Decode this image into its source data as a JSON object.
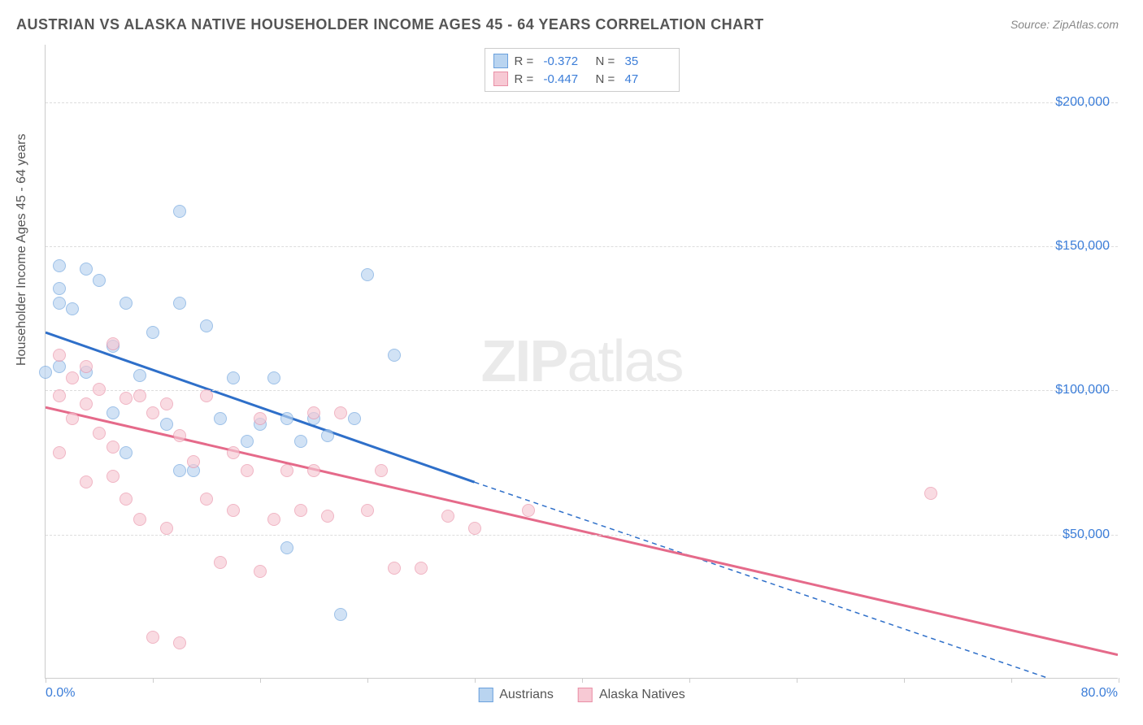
{
  "title": "AUSTRIAN VS ALASKA NATIVE HOUSEHOLDER INCOME AGES 45 - 64 YEARS CORRELATION CHART",
  "source": "Source: ZipAtlas.com",
  "ylabel": "Householder Income Ages 45 - 64 years",
  "watermark_a": "ZIP",
  "watermark_b": "atlas",
  "chart": {
    "type": "scatter",
    "xlim": [
      0,
      80
    ],
    "ylim": [
      0,
      220000
    ],
    "x_min_label": "0.0%",
    "x_max_label": "80.0%",
    "y_ticks": [
      50000,
      100000,
      150000,
      200000
    ],
    "y_tick_labels": [
      "$50,000",
      "$100,000",
      "$150,000",
      "$200,000"
    ],
    "x_ticks": [
      0,
      8,
      16,
      24,
      32,
      40,
      48,
      56,
      64,
      72,
      80
    ],
    "grid_color": "#dddddd",
    "axis_color": "#cccccc",
    "background": "#ffffff",
    "point_radius": 8,
    "series": [
      {
        "name": "Austrians",
        "fill": "#b9d4f0",
        "stroke": "#6aa0dd",
        "line_color": "#2e6fc9",
        "r_value": "-0.372",
        "n_value": "35",
        "trend_solid": {
          "x1": 0,
          "y1": 120000,
          "x2": 32,
          "y2": 68000
        },
        "trend_dash": {
          "x1": 32,
          "y1": 68000,
          "x2": 76,
          "y2": -2000
        },
        "points": [
          [
            1,
            143000
          ],
          [
            1,
            135000
          ],
          [
            1,
            130000
          ],
          [
            2,
            128000
          ],
          [
            3,
            142000
          ],
          [
            4,
            138000
          ],
          [
            5,
            115000
          ],
          [
            6,
            130000
          ],
          [
            7,
            105000
          ],
          [
            8,
            120000
          ],
          [
            9,
            88000
          ],
          [
            10,
            162000
          ],
          [
            10,
            72000
          ],
          [
            10,
            130000
          ],
          [
            11,
            72000
          ],
          [
            12,
            122000
          ],
          [
            13,
            90000
          ],
          [
            14,
            104000
          ],
          [
            15,
            82000
          ],
          [
            16,
            88000
          ],
          [
            17,
            104000
          ],
          [
            18,
            90000
          ],
          [
            18,
            45000
          ],
          [
            19,
            82000
          ],
          [
            20,
            90000
          ],
          [
            21,
            84000
          ],
          [
            22,
            22000
          ],
          [
            23,
            90000
          ],
          [
            24,
            140000
          ],
          [
            26,
            112000
          ],
          [
            0,
            106000
          ],
          [
            3,
            106000
          ],
          [
            5,
            92000
          ],
          [
            6,
            78000
          ],
          [
            1,
            108000
          ]
        ]
      },
      {
        "name": "Alaska Natives",
        "fill": "#f7c9d4",
        "stroke": "#e98fa6",
        "line_color": "#e56a8a",
        "r_value": "-0.447",
        "n_value": "47",
        "trend_solid": {
          "x1": 0,
          "y1": 94000,
          "x2": 80,
          "y2": 8000
        },
        "trend_dash": null,
        "points": [
          [
            1,
            112000
          ],
          [
            1,
            98000
          ],
          [
            2,
            104000
          ],
          [
            2,
            90000
          ],
          [
            3,
            108000
          ],
          [
            3,
            95000
          ],
          [
            4,
            100000
          ],
          [
            4,
            85000
          ],
          [
            5,
            116000
          ],
          [
            5,
            80000
          ],
          [
            6,
            97000
          ],
          [
            6,
            62000
          ],
          [
            7,
            98000
          ],
          [
            7,
            55000
          ],
          [
            8,
            92000
          ],
          [
            8,
            14000
          ],
          [
            9,
            95000
          ],
          [
            9,
            52000
          ],
          [
            10,
            84000
          ],
          [
            10,
            12000
          ],
          [
            11,
            75000
          ],
          [
            12,
            98000
          ],
          [
            12,
            62000
          ],
          [
            13,
            40000
          ],
          [
            14,
            58000
          ],
          [
            14,
            78000
          ],
          [
            15,
            72000
          ],
          [
            16,
            90000
          ],
          [
            16,
            37000
          ],
          [
            17,
            55000
          ],
          [
            18,
            72000
          ],
          [
            19,
            58000
          ],
          [
            20,
            92000
          ],
          [
            20,
            72000
          ],
          [
            21,
            56000
          ],
          [
            22,
            92000
          ],
          [
            24,
            58000
          ],
          [
            25,
            72000
          ],
          [
            26,
            38000
          ],
          [
            28,
            38000
          ],
          [
            30,
            56000
          ],
          [
            32,
            52000
          ],
          [
            36,
            58000
          ],
          [
            66,
            64000
          ],
          [
            5,
            70000
          ],
          [
            3,
            68000
          ],
          [
            1,
            78000
          ]
        ]
      }
    ]
  }
}
